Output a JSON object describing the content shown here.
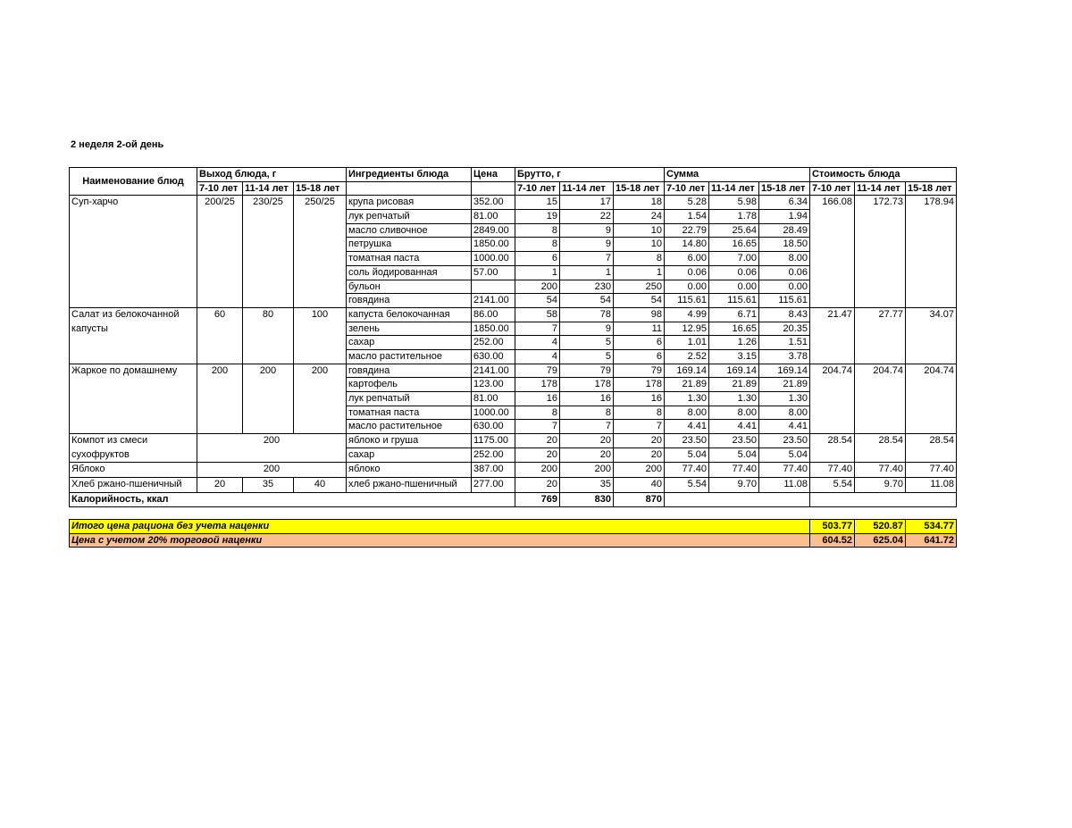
{
  "title": "2 неделя 2-ой день",
  "headers": {
    "dish_name": "Наименование блюд",
    "yield": "Выход блюда, г",
    "ingredients": "Ингредиенты блюда",
    "price": "Цена",
    "brutto": "Брутто, г",
    "sum": "Сумма",
    "cost": "Стоимость блюда",
    "ages": [
      "7-10 лет",
      "11-14 лет",
      "15-18 лет"
    ]
  },
  "dishes": [
    {
      "name": "Суп-харчо",
      "yield": [
        "200/25",
        "230/25",
        "250/25"
      ],
      "cost": [
        "166.08",
        "172.73",
        "178.94"
      ],
      "ingredients": [
        {
          "name": "крупа рисовая",
          "price": "352.00",
          "brutto": [
            "15",
            "17",
            "18"
          ],
          "sum": [
            "5.28",
            "5.98",
            "6.34"
          ]
        },
        {
          "name": "лук репчатый",
          "price": "81.00",
          "brutto": [
            "19",
            "22",
            "24"
          ],
          "sum": [
            "1.54",
            "1.78",
            "1.94"
          ]
        },
        {
          "name": "масло сливочное",
          "price": "2849.00",
          "brutto": [
            "8",
            "9",
            "10"
          ],
          "sum": [
            "22.79",
            "25.64",
            "28.49"
          ]
        },
        {
          "name": "петрушка",
          "price": "1850.00",
          "brutto": [
            "8",
            "9",
            "10"
          ],
          "sum": [
            "14.80",
            "16.65",
            "18.50"
          ]
        },
        {
          "name": "томатная паста",
          "price": "1000.00",
          "brutto": [
            "6",
            "7",
            "8"
          ],
          "sum": [
            "6.00",
            "7.00",
            "8.00"
          ]
        },
        {
          "name": "соль йодированная",
          "price": "57.00",
          "brutto": [
            "1",
            "1",
            "1"
          ],
          "sum": [
            "0.06",
            "0.06",
            "0.06"
          ]
        },
        {
          "name": "бульон",
          "price": "",
          "brutto": [
            "200",
            "230",
            "250"
          ],
          "sum": [
            "0.00",
            "0.00",
            "0.00"
          ]
        },
        {
          "name": "говядина",
          "price": "2141.00",
          "brutto": [
            "54",
            "54",
            "54"
          ],
          "sum": [
            "115.61",
            "115.61",
            "115.61"
          ]
        }
      ]
    },
    {
      "name": "Салат из белокочанной капусты",
      "yield": [
        "60",
        "80",
        "100"
      ],
      "cost": [
        "21.47",
        "27.77",
        "34.07"
      ],
      "ingredients": [
        {
          "name": "капуста белокочанная",
          "price": "86.00",
          "brutto": [
            "58",
            "78",
            "98"
          ],
          "sum": [
            "4.99",
            "6.71",
            "8.43"
          ]
        },
        {
          "name": "зелень",
          "price": "1850.00",
          "brutto": [
            "7",
            "9",
            "11"
          ],
          "sum": [
            "12.95",
            "16.65",
            "20.35"
          ]
        },
        {
          "name": "сахар",
          "price": "252.00",
          "brutto": [
            "4",
            "5",
            "6"
          ],
          "sum": [
            "1.01",
            "1.26",
            "1.51"
          ]
        },
        {
          "name": "масло растительное",
          "price": "630.00",
          "brutto": [
            "4",
            "5",
            "6"
          ],
          "sum": [
            "2.52",
            "3.15",
            "3.78"
          ]
        }
      ]
    },
    {
      "name": "Жаркое по домашнему",
      "yield": [
        "200",
        "200",
        "200"
      ],
      "cost": [
        "204.74",
        "204.74",
        "204.74"
      ],
      "ingredients": [
        {
          "name": "говядина",
          "price": "2141.00",
          "brutto": [
            "79",
            "79",
            "79"
          ],
          "sum": [
            "169.14",
            "169.14",
            "169.14"
          ]
        },
        {
          "name": "картофель",
          "price": "123.00",
          "brutto": [
            "178",
            "178",
            "178"
          ],
          "sum": [
            "21.89",
            "21.89",
            "21.89"
          ]
        },
        {
          "name": "лук репчатый",
          "price": "81.00",
          "brutto": [
            "16",
            "16",
            "16"
          ],
          "sum": [
            "1.30",
            "1.30",
            "1.30"
          ]
        },
        {
          "name": "томатная паста",
          "price": "1000.00",
          "brutto": [
            "8",
            "8",
            "8"
          ],
          "sum": [
            "8.00",
            "8.00",
            "8.00"
          ]
        },
        {
          "name": "масло растительное",
          "price": "630.00",
          "brutto": [
            "7",
            "7",
            "7"
          ],
          "sum": [
            "4.41",
            "4.41",
            "4.41"
          ]
        }
      ]
    },
    {
      "name": "Компот из смеси сухофруктов",
      "yield": [
        "200"
      ],
      "cost": [
        "28.54",
        "28.54",
        "28.54"
      ],
      "ingredients": [
        {
          "name": "яблоко и груша",
          "price": "1175.00",
          "brutto": [
            "20",
            "20",
            "20"
          ],
          "sum": [
            "23.50",
            "23.50",
            "23.50"
          ]
        },
        {
          "name": "сахар",
          "price": "252.00",
          "brutto": [
            "20",
            "20",
            "20"
          ],
          "sum": [
            "5.04",
            "5.04",
            "5.04"
          ]
        }
      ]
    },
    {
      "name": "Яблоко",
      "yield": [
        "200"
      ],
      "cost": [
        "77.40",
        "77.40",
        "77.40"
      ],
      "ingredients": [
        {
          "name": "яблоко",
          "price": "387.00",
          "brutto": [
            "200",
            "200",
            "200"
          ],
          "sum": [
            "77.40",
            "77.40",
            "77.40"
          ]
        }
      ]
    },
    {
      "name": "Хлеб ржано-пшеничный",
      "yield": [
        "20",
        "35",
        "40"
      ],
      "cost": [
        "5.54",
        "9.70",
        "11.08"
      ],
      "ingredients": [
        {
          "name": "хлеб ржано-пшеничный",
          "price": "277.00",
          "brutto": [
            "20",
            "35",
            "40"
          ],
          "sum": [
            "5.54",
            "9.70",
            "11.08"
          ]
        }
      ]
    }
  ],
  "calories": {
    "label": "Калорийность, ккал",
    "values": [
      "769",
      "830",
      "870"
    ]
  },
  "totals": [
    {
      "label": "Итого цена рациона без учета наценки",
      "values": [
        "503.77",
        "520.87",
        "534.77"
      ],
      "color": "#ffff00"
    },
    {
      "label": "Цена с учетом 20% торговой наценки",
      "values": [
        "604.52",
        "625.04",
        "641.72"
      ],
      "color": "#fabf8f"
    }
  ]
}
